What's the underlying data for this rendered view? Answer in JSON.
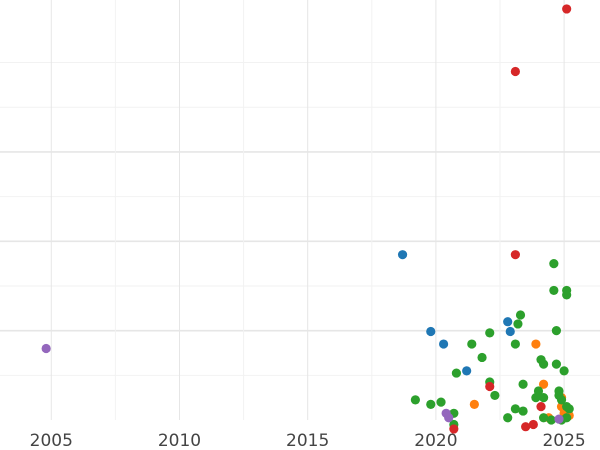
{
  "colors": {
    "blue": "#1f77b4",
    "orange": "#ff7f0e",
    "green": "#2ca02c",
    "red": "#d62728",
    "purple": "#9467bd",
    "grid_major": "#e6e6e6",
    "grid_minor": "#f2f2f2"
  },
  "chart_data": {
    "type": "scatter",
    "title": "",
    "xlabel": "",
    "ylabel": "",
    "xlim": [
      2003.0,
      2026.4
    ],
    "ylim": [
      0,
      9.4
    ],
    "x_ticks": [
      2005,
      2010,
      2015,
      2020,
      2025
    ],
    "x_tick_labels": [
      "2005",
      "2010",
      "2015",
      "2020",
      "2025"
    ],
    "y_major_gridlines": [
      2,
      4,
      6
    ],
    "y_minor_gridlines": [
      1,
      3,
      5,
      7,
      8
    ],
    "y_tick_labels": [],
    "grid": true,
    "legend": "none",
    "series": [
      {
        "color": "blue",
        "points": [
          [
            2018.7,
            3.7
          ],
          [
            2019.8,
            1.98
          ],
          [
            2020.3,
            1.7
          ],
          [
            2021.2,
            1.1
          ],
          [
            2022.8,
            2.2
          ],
          [
            2022.9,
            1.98
          ]
        ]
      },
      {
        "color": "orange",
        "points": [
          [
            2021.5,
            0.35
          ],
          [
            2023.9,
            1.7
          ],
          [
            2024.2,
            0.8
          ],
          [
            2024.4,
            0.05
          ],
          [
            2024.9,
            0.5
          ],
          [
            2024.9,
            0.3
          ],
          [
            2025.0,
            0.15
          ],
          [
            2025.2,
            0.1
          ]
        ]
      },
      {
        "color": "green",
        "points": [
          [
            2019.2,
            0.45
          ],
          [
            2019.8,
            0.35
          ],
          [
            2020.2,
            0.4
          ],
          [
            2020.7,
            0.15
          ],
          [
            2020.7,
            -0.1
          ],
          [
            2020.8,
            1.05
          ],
          [
            2021.4,
            1.7
          ],
          [
            2021.8,
            1.4
          ],
          [
            2022.1,
            1.95
          ],
          [
            2022.1,
            0.85
          ],
          [
            2022.3,
            0.55
          ],
          [
            2022.8,
            0.05
          ],
          [
            2023.1,
            1.7
          ],
          [
            2023.1,
            0.25
          ],
          [
            2023.2,
            2.15
          ],
          [
            2023.3,
            2.35
          ],
          [
            2023.4,
            0.8
          ],
          [
            2023.4,
            0.2
          ],
          [
            2023.9,
            0.5
          ],
          [
            2024.0,
            0.65
          ],
          [
            2024.1,
            1.35
          ],
          [
            2024.2,
            1.25
          ],
          [
            2024.2,
            0.5
          ],
          [
            2024.2,
            0.05
          ],
          [
            2024.5,
            0.0
          ],
          [
            2024.6,
            3.5
          ],
          [
            2024.6,
            2.9
          ],
          [
            2024.7,
            1.25
          ],
          [
            2024.7,
            2.0
          ],
          [
            2024.8,
            0.65
          ],
          [
            2024.8,
            0.55
          ],
          [
            2024.9,
            0.45
          ],
          [
            2024.9,
            0.0
          ],
          [
            2025.0,
            1.1
          ],
          [
            2025.1,
            2.8
          ],
          [
            2025.1,
            2.9
          ],
          [
            2025.1,
            0.3
          ],
          [
            2025.1,
            0.05
          ],
          [
            2025.2,
            0.25
          ]
        ]
      },
      {
        "color": "red",
        "points": [
          [
            2020.7,
            -0.2
          ],
          [
            2022.1,
            0.75
          ],
          [
            2023.1,
            7.8
          ],
          [
            2023.1,
            3.7
          ],
          [
            2023.5,
            -0.15
          ],
          [
            2023.8,
            -0.1
          ],
          [
            2024.1,
            0.3
          ],
          [
            2025.1,
            9.2
          ]
        ]
      },
      {
        "color": "purple",
        "points": [
          [
            2004.8,
            1.6
          ],
          [
            2020.4,
            0.15
          ],
          [
            2020.5,
            0.05
          ],
          [
            2024.8,
            0.02
          ]
        ]
      }
    ]
  }
}
